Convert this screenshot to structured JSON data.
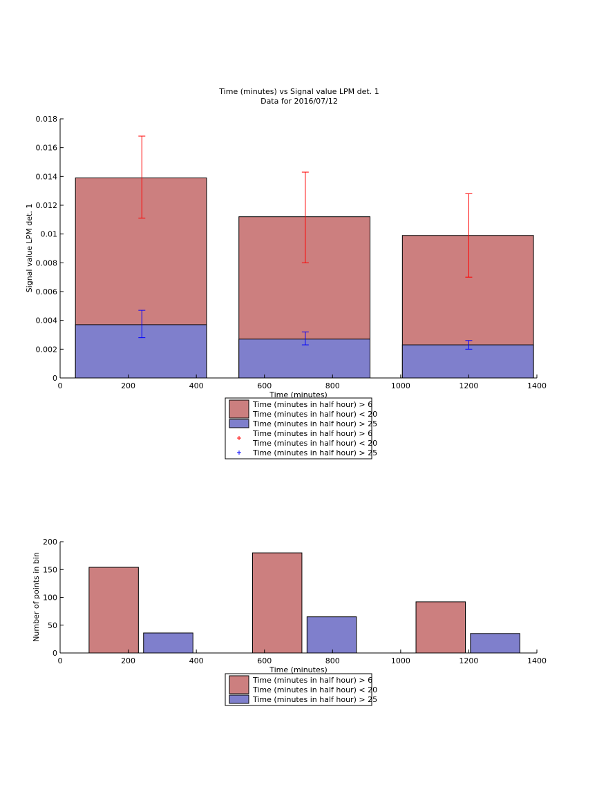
{
  "colors": {
    "red_fill": "#cc7f7f",
    "blue_fill": "#7f7fcc",
    "red_err": "#ff0000",
    "blue_err": "#0000ff",
    "edge": "#000000"
  },
  "chart_data": [
    {
      "type": "bar",
      "title": "Time (minutes) vs Signal value LPM det. 1",
      "subtitle": "Data for 2016/07/12",
      "xlabel": "Time (minutes)",
      "ylabel": "Signal value LPM det. 1",
      "xlim": [
        0,
        1400
      ],
      "ylim": [
        0,
        0.018
      ],
      "xticks": [
        "0",
        "200",
        "400",
        "600",
        "800",
        "1000",
        "1200",
        "1400"
      ],
      "yticks": [
        "0",
        "0.002",
        "0.004",
        "0.006",
        "0.008",
        "0.01",
        "0.012",
        "0.014",
        "0.016",
        "0.018"
      ],
      "grid": false,
      "stacked_overlay": true,
      "bins": [
        {
          "x": 240,
          "x_from": 45,
          "x_to": 430
        },
        {
          "x": 720,
          "x_from": 525,
          "x_to": 910
        },
        {
          "x": 1200,
          "x_from": 1005,
          "x_to": 1390
        }
      ],
      "series": [
        {
          "name": "Time (minutes in half hour) > 6\nTime (minutes in half hour) < 20",
          "color": "#cc7f7f",
          "values": [
            0.0139,
            0.0112,
            0.0099
          ],
          "err_low": [
            0.0111,
            0.008,
            0.007
          ],
          "err_high": [
            0.0168,
            0.0143,
            0.0128
          ]
        },
        {
          "name": "Time (minutes in half hour) > 25",
          "color": "#7f7fcc",
          "values": [
            0.0037,
            0.0027,
            0.0023
          ],
          "err_low": [
            0.0028,
            0.0023,
            0.002
          ],
          "err_high": [
            0.0047,
            0.0032,
            0.0026
          ]
        }
      ],
      "legend": {
        "placement": "below",
        "entries": [
          {
            "kind": "patch",
            "color": "#cc7f7f",
            "lines": [
              "Time (minutes in half hour) > 6",
              "Time (minutes in half hour) < 20"
            ]
          },
          {
            "kind": "patch",
            "color": "#7f7fcc",
            "lines": [
              "Time (minutes in half hour) > 25"
            ]
          },
          {
            "kind": "marker",
            "color": "#ff0000",
            "lines": [
              "Time (minutes in half hour) > 6",
              "Time (minutes in half hour) < 20"
            ]
          },
          {
            "kind": "marker",
            "color": "#0000ff",
            "lines": [
              "Time (minutes in half hour) > 25"
            ]
          }
        ]
      }
    },
    {
      "type": "bar",
      "title": "",
      "xlabel": "Time (minutes)",
      "ylabel": "Number of points in bin",
      "xlim": [
        0,
        1400
      ],
      "ylim": [
        0,
        200
      ],
      "xticks": [
        "0",
        "200",
        "400",
        "600",
        "800",
        "1000",
        "1200",
        "1400"
      ],
      "yticks": [
        "0",
        "50",
        "100",
        "150",
        "200"
      ],
      "grid": false,
      "bars": [
        {
          "x_from": 85,
          "x_to": 230,
          "value": 154,
          "series": 0
        },
        {
          "x_from": 245,
          "x_to": 390,
          "value": 36,
          "series": 1
        },
        {
          "x_from": 565,
          "x_to": 710,
          "value": 180,
          "series": 0
        },
        {
          "x_from": 725,
          "x_to": 870,
          "value": 65,
          "series": 1
        },
        {
          "x_from": 1045,
          "x_to": 1190,
          "value": 92,
          "series": 0
        },
        {
          "x_from": 1205,
          "x_to": 1350,
          "value": 35,
          "series": 1
        }
      ],
      "series": [
        {
          "name": "Time (minutes in half hour) > 6\nTime (minutes in half hour) < 20",
          "color": "#cc7f7f"
        },
        {
          "name": "Time (minutes in half hour) > 25",
          "color": "#7f7fcc"
        }
      ],
      "legend": {
        "placement": "below",
        "entries": [
          {
            "kind": "patch",
            "color": "#cc7f7f",
            "lines": [
              "Time (minutes in half hour) > 6",
              "Time (minutes in half hour) < 20"
            ]
          },
          {
            "kind": "patch",
            "color": "#7f7fcc",
            "lines": [
              "Time (minutes in half hour) > 25"
            ]
          }
        ]
      }
    }
  ]
}
